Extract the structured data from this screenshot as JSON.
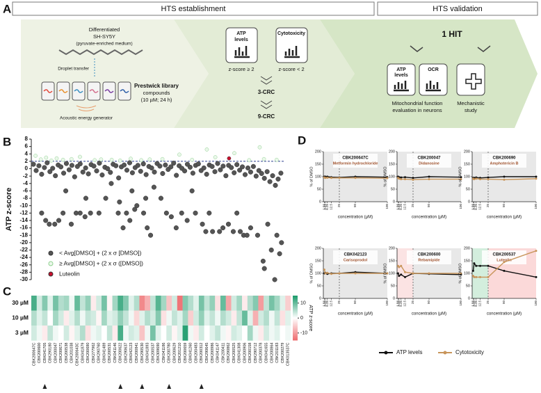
{
  "panel_labels": [
    "A",
    "B",
    "C",
    "D"
  ],
  "diagram": {
    "establishment_header": "HTS establishment",
    "validation_header": "HTS validation",
    "cells": [
      "Differentiated",
      "SH-SY5Y",
      "(pyruvate-enriched medium)"
    ],
    "droplet": "Droplet transfer",
    "library": [
      "Prestwick library",
      "compounds",
      "(10 µM; 24 h)"
    ],
    "generator": "Acoustic energy generator",
    "atp_box": [
      "ATP",
      "levels"
    ],
    "cyto_box": "Cytotoxicity",
    "atp_criterion": "z-score ≥ 2",
    "cyto_criterion": "z-score < 2",
    "crc3": "3-CRC",
    "crc9": "9-CRC",
    "hit": "1 HIT",
    "val_atp": [
      "ATP",
      "levels"
    ],
    "val_ocr": "OCR",
    "mito": [
      "Mitochondrial function",
      "evaluation in neurons"
    ],
    "mech": [
      "Mechanistic",
      "study"
    ]
  },
  "chart_data": [
    {
      "type": "scatter",
      "y_label": "ATP z-score",
      "xlim": [
        0,
        1200
      ],
      "ylim": [
        -30,
        8
      ],
      "yticks": [
        8,
        6,
        4,
        2,
        0,
        -2,
        -4,
        -6,
        -8,
        -10,
        -12,
        -14,
        -16,
        -18,
        -20,
        -22,
        -24,
        -26,
        -28,
        -30
      ],
      "threshold": 2,
      "legend": "bottom-left",
      "series": [
        {
          "name": "< Avg[DMSO] + (2 x σ [DMSO])",
          "color": "#555555",
          "x": [
            10,
            23,
            36,
            49,
            62,
            75,
            88,
            101,
            114,
            127,
            140,
            153,
            166,
            179,
            192,
            205,
            218,
            231,
            244,
            257,
            270,
            283,
            296,
            309,
            322,
            335,
            348,
            361,
            374,
            387,
            400,
            413,
            426,
            439,
            452,
            465,
            478,
            491,
            504,
            517,
            530,
            543,
            556,
            569,
            582,
            595,
            608,
            621,
            634,
            647,
            660,
            673,
            686,
            699,
            712,
            725,
            738,
            751,
            764,
            777,
            790,
            803,
            816,
            829,
            842,
            855,
            868,
            881,
            894,
            907,
            920,
            933,
            946,
            959,
            972,
            985,
            998,
            1011,
            1024,
            1037,
            1050,
            1063,
            1076,
            1089,
            1102,
            1115,
            1128,
            1141,
            1154,
            1167,
            1180,
            49,
            68,
            85,
            111,
            130,
            150,
            163,
            189,
            212,
            231,
            254,
            258,
            280,
            320,
            352,
            378,
            411,
            417,
            434,
            450,
            466,
            476,
            489,
            499,
            531,
            541,
            548,
            564,
            580,
            613,
            639,
            662,
            685,
            711,
            737,
            760,
            776,
            809,
            825,
            841,
            857,
            890,
            906,
            932,
            955,
            972,
            988,
            1004,
            1020,
            1037,
            1070,
            1096,
            1102,
            1118,
            1135,
            1151,
            1161,
            1174,
            1183
          ],
          "values": [
            1.2,
            -0.5,
            0.8,
            -1.5,
            0.3,
            1.6,
            -0.8,
            0.1,
            -1.9,
            1.0,
            0.5,
            -1.2,
            1.4,
            -0.3,
            0.9,
            -2.2,
            0.6,
            1.3,
            -0.9,
            0.2,
            -1.4,
            1.1,
            0.7,
            -0.6,
            1.5,
            -1.7,
            0.4,
            0.0,
            -1.0,
            1.2,
            0.8,
            -2.5,
            0.5,
            1.0,
            -0.4,
            1.6,
            -1.1,
            0.3,
            0.9,
            -0.7,
            1.3,
            -1.6,
            0.6,
            0.2,
            -0.9,
            1.4,
            0.7,
            -1.3,
            1.0,
            -0.2,
            0.5,
            1.5,
            -1.8,
            0.8,
            0.1,
            -0.6,
            1.2,
            0.4,
            -1.2,
            0.9,
            1.3,
            -0.5,
            0.2,
            -1.5,
            1.0,
            0.6,
            -0.8,
            1.4,
            -0.3,
            0.7,
            -1.9,
            0.9,
            0.3,
            -1.1,
            1.1,
            -0.4,
            0.5,
            -1.6,
            0.2,
            -0.9,
            0.6,
            -2.0,
            -0.5,
            -1.3,
            -2.6,
            -0.8,
            -3.5,
            -1.9,
            -4.5,
            -2.8,
            -1.2,
            -12,
            -14,
            -15,
            -15,
            -14,
            -12,
            -6,
            -15,
            -12,
            -12,
            -13,
            -8,
            -12,
            -12,
            -8,
            -4,
            -12,
            -9,
            -16,
            -12,
            -14,
            -6,
            -11,
            -10,
            -12,
            -8,
            -16,
            -18,
            -5,
            -8,
            -12,
            -13,
            -16,
            -12,
            -14,
            -6,
            -12,
            -15,
            -17,
            -12,
            -17,
            -17,
            -16,
            -15,
            -17,
            -12,
            -17,
            -18,
            -18,
            -16,
            -18,
            -25,
            -27,
            -15,
            -22,
            -30,
            -18,
            -23,
            -20
          ]
        },
        {
          "name": "≥ Avg[DMSO] + (2 x σ ([DMSO])",
          "color": "#8fd18f",
          "x": [
            20,
            45,
            70,
            95,
            120,
            150,
            190,
            230,
            300,
            330,
            380,
            420,
            470,
            520,
            560,
            620,
            700,
            760,
            830,
            870,
            960,
            1030,
            1080,
            1160,
            1100
          ],
          "values": [
            3.5,
            2.5,
            3,
            2.2,
            2.8,
            2.4,
            2.6,
            3.2,
            2.3,
            2.5,
            2.4,
            2.2,
            2.7,
            2.3,
            2.5,
            2.6,
            3.8,
            2.4,
            5.2,
            3.1,
            4.2,
            2.3,
            5.8,
            2.4,
            2.6
          ]
        },
        {
          "name": "Luteolin",
          "color": "#c8102e",
          "x": [
            935
          ],
          "values": [
            2.8
          ]
        }
      ]
    },
    {
      "type": "heatmap",
      "rows": [
        "30 µM",
        "10 µM",
        "3 µM"
      ],
      "categories": [
        "CBK200647C",
        "CBK200600",
        "CBK041705",
        "CBK290180",
        "CBK200047",
        "CBK200671",
        "CBK200538",
        "CBK201038",
        "CBK200643C",
        "CBK041879",
        "CBK200690",
        "CBK277962",
        "CBK290760",
        "CBK041489",
        "CBK200531",
        "CBK041146",
        "CBK200622",
        "CBK290637",
        "CBK042123",
        "CBK200841",
        "CBK290530",
        "CBK041893",
        "CBK200537",
        "CBK309690",
        "CBK041186",
        "CBK200780",
        "CBK200629",
        "CBK201210",
        "CBK200659",
        "CBK041260",
        "CBK200483",
        "CBK200312",
        "CBK290645",
        "CBK200986",
        "CBK041147",
        "CBK200411",
        "CBK290862",
        "CBK200525",
        "CBK041308",
        "CBK200906",
        "CBK200158",
        "CBK290712",
        "CBK200378",
        "CBK041655",
        "CBK200864",
        "CBK201183",
        "CBK200279",
        "CBK013537C"
      ],
      "values": [
        [
          12,
          3,
          8,
          2,
          9,
          5,
          6,
          1,
          10,
          4,
          7,
          -2,
          3,
          9,
          -1,
          6,
          12,
          8,
          2,
          5,
          -12,
          -8,
          4,
          11,
          6,
          -6,
          3,
          -14,
          8,
          5,
          2,
          9,
          4,
          7,
          -3,
          10,
          -9,
          3,
          6,
          -2,
          5,
          8,
          -10,
          4,
          9,
          6,
          2,
          -5
        ],
        [
          5,
          2,
          4,
          0,
          6,
          3,
          -2,
          2,
          5,
          1,
          4,
          3,
          -1,
          6,
          2,
          3,
          7,
          4,
          1,
          -4,
          2,
          5,
          3,
          8,
          -3,
          1,
          4,
          2,
          6,
          -5,
          3,
          7,
          2,
          4,
          1,
          5,
          3,
          -2,
          4,
          10,
          2,
          -8,
          3,
          5,
          1,
          4,
          -3,
          2
        ],
        [
          3,
          1,
          -2,
          4,
          1,
          0,
          3,
          -1,
          2,
          5,
          -3,
          1,
          2,
          0,
          4,
          -2,
          12,
          1,
          3,
          2,
          -6,
          1,
          9,
          2,
          0,
          3,
          -1,
          2,
          14,
          1,
          -2,
          3,
          0,
          2,
          4,
          1,
          -1,
          3,
          2,
          0,
          6,
          1,
          -2,
          3,
          1,
          2,
          0,
          1
        ]
      ],
      "zlim": [
        -15,
        15
      ],
      "zticks": [
        10,
        0,
        -10
      ],
      "colorbar_label": "ATP z-score",
      "colors": [
        "#ee6b6e",
        "#ffffff",
        "#1a9a6a"
      ],
      "highlighted": [
        2,
        16,
        20,
        25,
        31
      ]
    },
    {
      "type": "line",
      "title": "CBK200647C",
      "subtitle": "Metformin hydrochloride",
      "x": [
        1.56,
        3.13,
        6.25,
        12.5,
        25,
        50,
        100
      ],
      "xticks": [
        1.56,
        3.13,
        6.25,
        12.5,
        25,
        50,
        100
      ],
      "xlim": [
        0,
        100
      ],
      "ylim": [
        0,
        200
      ],
      "yticks": [
        0,
        50,
        100,
        150,
        200
      ],
      "x_label": "concentration (µM)",
      "y_label": "% of DMSO",
      "cutoff": 25,
      "regions": [
        {
          "from": 0,
          "to": 100,
          "color": "#e8e8e8"
        }
      ],
      "legend": "bottom",
      "series": [
        {
          "name": "ATP levels",
          "color": "#111111",
          "values": [
            100,
            100,
            100,
            98,
            97,
            100,
            98
          ]
        },
        {
          "name": "Cytotoxicity",
          "color": "#c8955a",
          "values": [
            97,
            95,
            96,
            95,
            95,
            95,
            94
          ]
        }
      ]
    },
    {
      "type": "line",
      "title": "CBK200047",
      "subtitle": "Didanosine",
      "x": [
        1.56,
        3.13,
        6.25,
        12.5,
        25,
        50,
        100
      ],
      "xticks": [
        1.56,
        3.13,
        6.25,
        12.5,
        25,
        50,
        100
      ],
      "xlim": [
        0,
        100
      ],
      "ylim": [
        0,
        200
      ],
      "yticks": [
        0,
        50,
        100,
        150,
        200
      ],
      "x_label": "concentration (µM)",
      "y_label": "% of DMSO",
      "cutoff": 25,
      "regions": [
        {
          "from": 0,
          "to": 100,
          "color": "#e8e8e8"
        }
      ],
      "series": [
        {
          "name": "ATP levels",
          "color": "#111111",
          "values": [
            100,
            98,
            97,
            98,
            95,
            100,
            98
          ]
        },
        {
          "name": "Cytotoxicity",
          "color": "#c8955a",
          "values": [
            95,
            92,
            90,
            90,
            88,
            90,
            90
          ]
        }
      ]
    },
    {
      "type": "line",
      "title": "CBK200690",
      "subtitle": "Amphotericin B",
      "x": [
        1.56,
        3.13,
        6.25,
        12.5,
        25,
        50,
        100
      ],
      "xticks": [
        1.56,
        3.13,
        6.25,
        12.5,
        25,
        50,
        100
      ],
      "xlim": [
        0,
        100
      ],
      "ylim": [
        0,
        200
      ],
      "yticks": [
        0,
        50,
        100,
        150,
        200
      ],
      "x_label": "concentration (µM)",
      "y_label": "% of DMSO",
      "cutoff": 25,
      "regions": [
        {
          "from": 0,
          "to": 100,
          "color": "#e8e8e8"
        }
      ],
      "series": [
        {
          "name": "ATP levels",
          "color": "#111111",
          "values": [
            95,
            95,
            97,
            95,
            97,
            100,
            100
          ]
        },
        {
          "name": "Cytotoxicity",
          "color": "#c8955a",
          "values": [
            92,
            90,
            92,
            90,
            90,
            88,
            92
          ]
        }
      ]
    },
    {
      "type": "line",
      "title": "CBK042123",
      "subtitle": "Carisoprodol",
      "x": [
        1.56,
        3.13,
        6.25,
        12.5,
        25,
        50,
        100
      ],
      "xticks": [
        1.56,
        3.13,
        6.25,
        12.5,
        25,
        50,
        100
      ],
      "xlim": [
        0,
        100
      ],
      "ylim": [
        0,
        200
      ],
      "yticks": [
        0,
        50,
        100,
        150,
        200
      ],
      "x_label": "concentration (µM)",
      "y_label": "% of DMSO",
      "cutoff": 25,
      "regions": [
        {
          "from": 0,
          "to": 100,
          "color": "#e8e8e8"
        }
      ],
      "series": [
        {
          "name": "ATP levels",
          "color": "#111111",
          "values": [
            100,
            102,
            98,
            100,
            100,
            105,
            100
          ]
        },
        {
          "name": "Cytotoxicity",
          "color": "#c8955a",
          "values": [
            115,
            100,
            102,
            98,
            100,
            100,
            100
          ]
        }
      ]
    },
    {
      "type": "line",
      "title": "CBK200600",
      "subtitle": "Rebamipide",
      "x": [
        1.56,
        3.13,
        6.25,
        12.5,
        25,
        50,
        100
      ],
      "xticks": [
        1.56,
        3.13,
        6.25,
        12.5,
        25,
        50,
        100
      ],
      "xlim": [
        0,
        100
      ],
      "ylim": [
        0,
        200
      ],
      "yticks": [
        0,
        50,
        100,
        150,
        200
      ],
      "x_label": "concentration (µM)",
      "y_label": "% of DMSO",
      "cutoff": 25,
      "regions": [
        {
          "from": 0,
          "to": 25,
          "color": "#fbe3e3"
        },
        {
          "from": 25,
          "to": 100,
          "color": "#e8e8e8"
        }
      ],
      "series": [
        {
          "name": "ATP levels",
          "color": "#111111",
          "values": [
            100,
            90,
            95,
            85,
            100,
            98,
            95
          ]
        },
        {
          "name": "Cytotoxicity",
          "color": "#c8955a",
          "values": [
            130,
            125,
            130,
            105,
            100,
            100,
            100
          ]
        }
      ]
    },
    {
      "type": "line",
      "title": "CBK200537",
      "subtitle": "Luteolin",
      "x": [
        1.56,
        3.13,
        6.25,
        12.5,
        25,
        50,
        100
      ],
      "xticks": [
        1.56,
        3.13,
        6.25,
        12.5,
        25,
        50,
        100
      ],
      "xlim": [
        0,
        100
      ],
      "ylim": [
        0,
        200
      ],
      "yticks": [
        0,
        50,
        100,
        150,
        200
      ],
      "x_label": "concentration (µM)",
      "y_label": "% of DMSO",
      "cutoff": 25,
      "regions": [
        {
          "from": 0,
          "to": 25,
          "color": "#d3eedd"
        },
        {
          "from": 25,
          "to": 100,
          "color": "#fbd9d9"
        }
      ],
      "series": [
        {
          "name": "ATP levels",
          "color": "#111111",
          "values": [
            110,
            140,
            130,
            130,
            130,
            110,
            85
          ]
        },
        {
          "name": "Cytotoxicity",
          "color": "#c8955a",
          "values": [
            90,
            85,
            85,
            85,
            85,
            145,
            190
          ]
        }
      ]
    }
  ]
}
